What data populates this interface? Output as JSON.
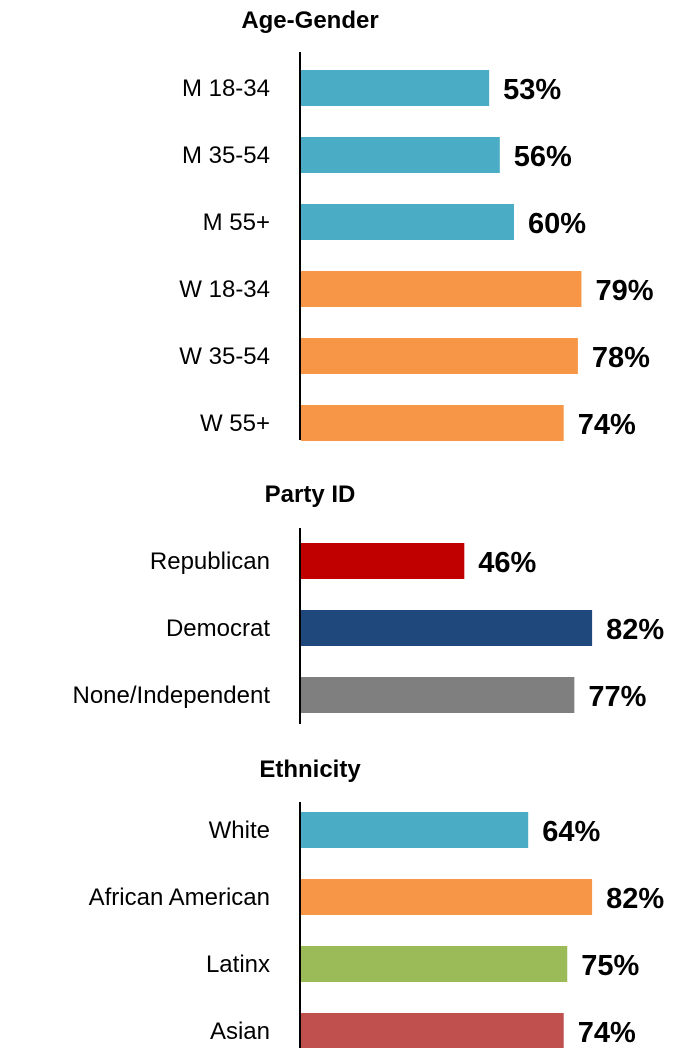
{
  "chart_data": {
    "type": "bar",
    "orientation": "horizontal",
    "xlim": [
      0,
      100
    ],
    "value_suffix": "%",
    "groups": [
      {
        "title": "Age-Gender",
        "categories": [
          "M 18-34",
          "M 35-54",
          "M 55+",
          "W 18-34",
          "W 35-54",
          "W 55+"
        ],
        "values": [
          53,
          56,
          60,
          79,
          78,
          74
        ],
        "value_labels": [
          "53%",
          "56%",
          "60%",
          "79%",
          "78%",
          "74%"
        ],
        "colors": [
          "#4BACC6",
          "#4BACC6",
          "#4BACC6",
          "#F79646",
          "#F79646",
          "#F79646"
        ]
      },
      {
        "title": "Party ID",
        "categories": [
          "Republican",
          "Democrat",
          "None/Independent"
        ],
        "values": [
          46,
          82,
          77
        ],
        "value_labels": [
          "46%",
          "82%",
          "77%"
        ],
        "colors": [
          "#C00000",
          "#1F497D",
          "#7F7F7F"
        ]
      },
      {
        "title": "Ethnicity",
        "categories": [
          "White",
          "African American",
          "Latinx",
          "Asian"
        ],
        "values": [
          64,
          82,
          75,
          74
        ],
        "value_labels": [
          "64%",
          "82%",
          "75%",
          "74%"
        ],
        "colors": [
          "#4BACC6",
          "#F79646",
          "#9BBB59",
          "#C0504D"
        ]
      }
    ]
  }
}
